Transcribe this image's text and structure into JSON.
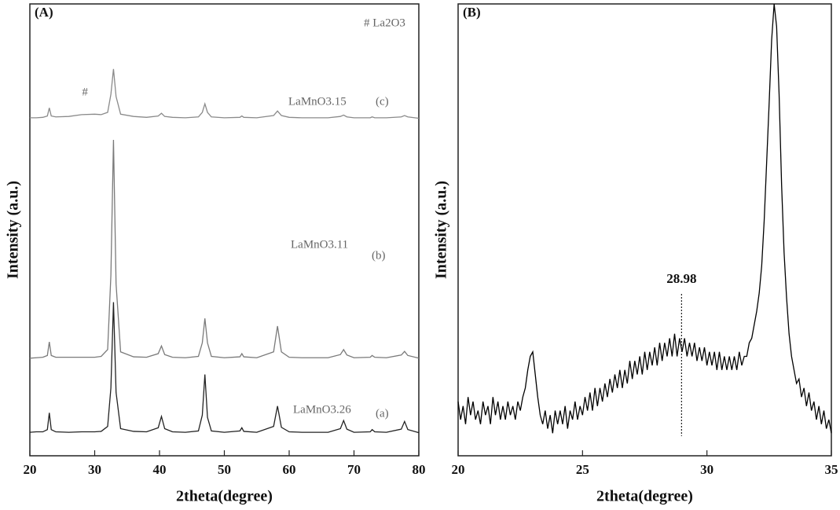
{
  "chart_data": [
    {
      "type": "line",
      "panel": "(A)",
      "xlabel": "2theta(degree)",
      "ylabel": "Intensity (a.u.)",
      "xlim": [
        20,
        80
      ],
      "xticks": [
        20,
        30,
        40,
        50,
        60,
        70,
        80
      ],
      "ylim": [
        0,
        100
      ],
      "note": "# La2O3",
      "annotations": [
        {
          "text": "#",
          "x": 28.5
        }
      ],
      "x": [
        20,
        21,
        22,
        22.7,
        23,
        23.3,
        24,
        26,
        28,
        30,
        31,
        32,
        32.5,
        32.9,
        33.3,
        34,
        36,
        38,
        39.8,
        40.3,
        40.8,
        42,
        44,
        46,
        46.6,
        47,
        47.4,
        48,
        50,
        52.4,
        52.7,
        53,
        55,
        57.6,
        58.2,
        58.8,
        60,
        62,
        64,
        66,
        67.9,
        68.4,
        68.9,
        70,
        72.5,
        72.8,
        73.2,
        75,
        77.3,
        77.8,
        78.3,
        80
      ],
      "series": [
        {
          "name": "LaMnO3.26",
          "label": "(a)",
          "color": "#222222",
          "values": [
            5.2,
            5.3,
            5.3,
            5.8,
            9.5,
            5.8,
            5.3,
            5.2,
            5.3,
            5.3,
            5.4,
            6.5,
            15,
            34,
            14,
            6,
            5.4,
            5.3,
            6.2,
            8.7,
            6,
            5.3,
            5.2,
            5.5,
            9,
            18,
            8.5,
            5.5,
            5.2,
            5.5,
            6.2,
            5.4,
            5.2,
            6.5,
            11,
            6.3,
            5.3,
            5.2,
            5.2,
            5.2,
            6,
            7.8,
            5.9,
            5.2,
            5.3,
            5.8,
            5.3,
            5.2,
            5.9,
            7.6,
            5.8,
            5.1
          ]
        },
        {
          "name": "LaMnO3.11",
          "label": "(b)",
          "color": "#7a7a7a",
          "values": [
            21.6,
            21.7,
            21.8,
            22.2,
            25.2,
            22.2,
            21.8,
            21.8,
            21.8,
            21.8,
            22,
            23.5,
            40,
            69.9,
            38,
            23,
            21.9,
            21.8,
            22.6,
            24.3,
            22.4,
            21.8,
            21.7,
            22,
            25,
            30.4,
            25,
            22,
            21.7,
            21.9,
            22.6,
            21.9,
            21.7,
            23,
            28.7,
            23,
            21.8,
            21.7,
            21.7,
            21.7,
            22.4,
            23.5,
            22.3,
            21.7,
            21.8,
            22.2,
            21.8,
            21.7,
            22.3,
            23.1,
            22.2,
            21.6
          ]
        },
        {
          "name": "LaMnO3.15",
          "label": "(c)",
          "color": "#8a8a8a",
          "values": [
            74.8,
            74.8,
            74.9,
            75.2,
            77,
            75.2,
            75,
            75.1,
            75.5,
            75.6,
            75.5,
            76,
            80,
            85.6,
            79.5,
            75.6,
            75.1,
            74.9,
            75.2,
            75.8,
            75.1,
            74.9,
            74.8,
            75,
            76,
            77.9,
            76,
            75,
            74.8,
            74.9,
            75.2,
            74.9,
            74.8,
            75.3,
            76.3,
            75.3,
            74.9,
            74.8,
            74.8,
            74.8,
            75.1,
            75.4,
            75,
            74.8,
            74.8,
            75,
            74.8,
            74.8,
            75,
            75.3,
            75,
            74.7
          ]
        }
      ]
    },
    {
      "type": "line",
      "panel": "(B)",
      "xlabel": "2theta(degree)",
      "ylabel": "Intensity (a.u.)",
      "xlim": [
        20,
        35
      ],
      "xticks": [
        20,
        25,
        30,
        35
      ],
      "ylim": [
        0,
        100
      ],
      "annotations": [
        {
          "text": "28.98",
          "x": 28.98
        }
      ],
      "x": [
        20,
        20.1,
        20.2,
        20.3,
        20.4,
        20.5,
        20.6,
        20.7,
        20.8,
        20.9,
        21,
        21.1,
        21.2,
        21.3,
        21.4,
        21.5,
        21.6,
        21.7,
        21.8,
        21.9,
        22,
        22.1,
        22.2,
        22.3,
        22.4,
        22.5,
        22.6,
        22.7,
        22.8,
        22.9,
        23,
        23.1,
        23.2,
        23.3,
        23.4,
        23.5,
        23.6,
        23.7,
        23.8,
        23.9,
        24,
        24.1,
        24.2,
        24.3,
        24.4,
        24.5,
        24.6,
        24.7,
        24.8,
        24.9,
        25,
        25.1,
        25.2,
        25.3,
        25.4,
        25.5,
        25.6,
        25.7,
        25.8,
        25.9,
        26,
        26.1,
        26.2,
        26.3,
        26.4,
        26.5,
        26.6,
        26.7,
        26.8,
        26.9,
        27,
        27.1,
        27.2,
        27.3,
        27.4,
        27.5,
        27.6,
        27.7,
        27.8,
        27.9,
        28,
        28.1,
        28.2,
        28.3,
        28.4,
        28.5,
        28.6,
        28.7,
        28.8,
        28.9,
        29,
        29.1,
        29.2,
        29.3,
        29.4,
        29.5,
        29.6,
        29.7,
        29.8,
        29.9,
        30,
        30.1,
        30.2,
        30.3,
        30.4,
        30.5,
        30.6,
        30.7,
        30.8,
        30.9,
        31,
        31.1,
        31.2,
        31.3,
        31.4,
        31.5,
        31.6,
        31.7,
        31.8,
        31.9,
        32,
        32.1,
        32.2,
        32.3,
        32.4,
        32.5,
        32.6,
        32.7,
        32.8,
        32.9,
        33,
        33.1,
        33.2,
        33.3,
        33.4,
        33.5,
        33.6,
        33.7,
        33.8,
        33.9,
        34,
        34.1,
        34.2,
        34.3,
        34.4,
        34.5,
        34.6,
        34.7,
        34.8,
        34.9,
        35
      ],
      "series": [
        {
          "color": "#000000",
          "values": [
            12,
            8,
            11,
            7,
            13,
            9,
            12,
            8,
            10,
            7,
            12,
            9,
            11,
            7,
            13,
            9,
            12,
            8,
            11,
            8,
            12,
            9,
            11,
            8,
            12,
            10,
            13,
            15,
            19,
            22,
            23,
            18,
            13,
            9,
            7,
            10,
            6,
            9,
            5,
            10,
            7,
            10,
            7,
            11,
            6,
            10,
            8,
            12,
            8,
            11,
            9,
            13,
            10,
            14,
            10,
            15,
            11,
            15,
            12,
            16,
            13,
            17,
            14,
            18,
            15,
            19,
            15,
            19,
            16,
            21,
            17,
            21,
            18,
            22,
            18,
            23,
            19,
            23,
            20,
            24,
            20,
            25,
            21,
            25,
            22,
            26,
            22,
            27,
            22,
            26,
            23,
            26,
            22,
            25,
            22,
            25,
            21,
            24,
            21,
            24,
            20,
            23,
            20,
            23,
            19,
            23,
            19,
            22,
            19,
            22,
            19,
            22,
            19,
            23,
            20,
            22,
            22,
            25,
            26,
            29,
            32,
            36,
            42,
            52,
            65,
            78,
            92,
            100,
            95,
            80,
            60,
            45,
            35,
            27,
            22,
            19,
            16,
            17,
            13,
            15,
            11,
            14,
            10,
            12,
            8,
            11,
            7,
            10,
            6,
            8,
            5
          ]
        }
      ]
    }
  ]
}
